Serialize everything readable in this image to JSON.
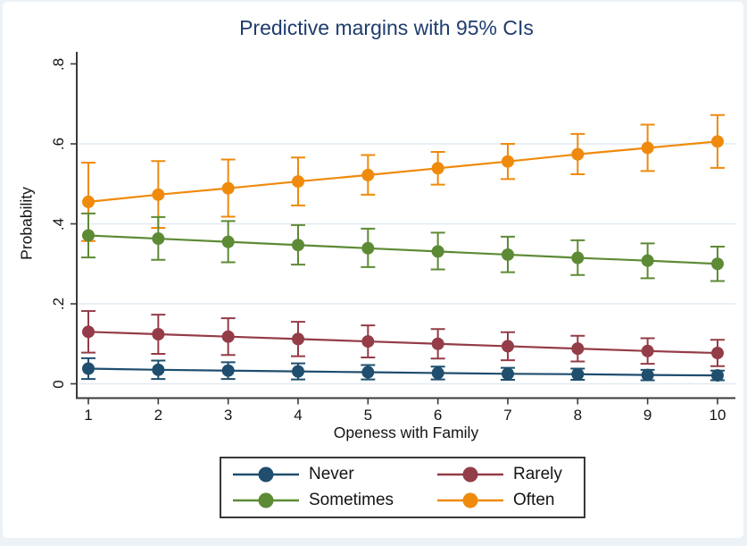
{
  "colors": {
    "title": "#1e3c6e",
    "axis": "#3a3a3a",
    "grid": "#e1ebf2",
    "text": "#141414",
    "frame_background": "#edf2f6",
    "figure_background": "#ffffff",
    "legend_border": "#383838"
  },
  "chart_data": {
    "type": "line",
    "title": "Predictive margins with 95% CIs",
    "xlabel": "Openess with Family",
    "ylabel": "Probability",
    "x": [
      1,
      2,
      3,
      4,
      5,
      6,
      7,
      8,
      9,
      10
    ],
    "xtick_labels": [
      "1",
      "2",
      "3",
      "4",
      "5",
      "6",
      "7",
      "8",
      "9",
      "10"
    ],
    "yticks": [
      0,
      0.2,
      0.4,
      0.6,
      0.8
    ],
    "ytick_labels": [
      "0",
      ".2",
      ".4",
      ".6",
      ".8"
    ],
    "ylim": [
      -0.035,
      0.84
    ],
    "grid": true,
    "gridline_values": [
      0,
      0.2,
      0.4,
      0.6
    ],
    "error_bars": "95% confidence intervals, capped",
    "legend_position": "bottom",
    "series": [
      {
        "name": "Never",
        "color": "#1f4e6e",
        "values": [
          0.038,
          0.035,
          0.033,
          0.031,
          0.029,
          0.027,
          0.025,
          0.024,
          0.022,
          0.021
        ],
        "ci_low": [
          0.012,
          0.012,
          0.012,
          0.011,
          0.011,
          0.011,
          0.01,
          0.01,
          0.009,
          0.009
        ],
        "ci_high": [
          0.064,
          0.058,
          0.054,
          0.051,
          0.047,
          0.043,
          0.04,
          0.038,
          0.035,
          0.033
        ]
      },
      {
        "name": "Rarely",
        "color": "#943c47",
        "values": [
          0.13,
          0.124,
          0.118,
          0.112,
          0.106,
          0.1,
          0.094,
          0.088,
          0.082,
          0.077
        ],
        "ci_low": [
          0.078,
          0.075,
          0.072,
          0.069,
          0.066,
          0.063,
          0.059,
          0.056,
          0.05,
          0.044
        ],
        "ci_high": [
          0.182,
          0.173,
          0.164,
          0.155,
          0.146,
          0.137,
          0.129,
          0.12,
          0.114,
          0.11
        ]
      },
      {
        "name": "Sometimes",
        "color": "#5d8a35",
        "values": [
          0.371,
          0.363,
          0.355,
          0.347,
          0.339,
          0.331,
          0.323,
          0.315,
          0.308,
          0.3
        ],
        "ci_low": [
          0.316,
          0.31,
          0.304,
          0.298,
          0.292,
          0.286,
          0.279,
          0.272,
          0.264,
          0.257
        ],
        "ci_high": [
          0.426,
          0.417,
          0.407,
          0.397,
          0.388,
          0.378,
          0.368,
          0.359,
          0.351,
          0.343
        ]
      },
      {
        "name": "Often",
        "color": "#ef8a0c",
        "values": [
          0.455,
          0.473,
          0.489,
          0.506,
          0.522,
          0.539,
          0.556,
          0.574,
          0.59,
          0.606
        ],
        "ci_low": [
          0.357,
          0.39,
          0.418,
          0.446,
          0.473,
          0.498,
          0.512,
          0.524,
          0.532,
          0.54
        ],
        "ci_high": [
          0.553,
          0.557,
          0.561,
          0.566,
          0.572,
          0.58,
          0.6,
          0.625,
          0.648,
          0.672
        ]
      }
    ]
  }
}
